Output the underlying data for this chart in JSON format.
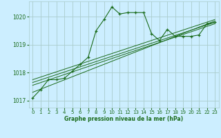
{
  "title": "Graphe pression niveau de la mer (hPa)",
  "bg_color": "#cceeff",
  "grid_color": "#aacccc",
  "line_color": "#1a6b1a",
  "text_color": "#1a6b1a",
  "ylim": [
    1016.75,
    1020.55
  ],
  "xlim": [
    -0.5,
    23.5
  ],
  "yticks": [
    1017,
    1018,
    1019,
    1020
  ],
  "xticks": [
    0,
    1,
    2,
    3,
    4,
    5,
    6,
    7,
    8,
    9,
    10,
    11,
    12,
    13,
    14,
    15,
    16,
    17,
    18,
    19,
    20,
    21,
    22,
    23
  ],
  "main_x": [
    0,
    1,
    2,
    3,
    4,
    5,
    6,
    7,
    8,
    9,
    10,
    11,
    12,
    13,
    14,
    15,
    16,
    17,
    18,
    19,
    20,
    21,
    22,
    23
  ],
  "main_y": [
    1017.1,
    1017.4,
    1017.75,
    1017.75,
    1017.8,
    1018.05,
    1018.3,
    1018.55,
    1019.5,
    1019.9,
    1020.35,
    1020.1,
    1020.15,
    1020.15,
    1020.15,
    1019.4,
    1019.15,
    1019.55,
    1019.3,
    1019.3,
    1019.3,
    1019.35,
    1019.75,
    1019.8
  ],
  "trend1_x": [
    0,
    23
  ],
  "trend1_y": [
    1017.3,
    1019.85
  ],
  "trend2_x": [
    0,
    23
  ],
  "trend2_y": [
    1017.55,
    1019.75
  ],
  "trend3_x": [
    0,
    23
  ],
  "trend3_y": [
    1017.65,
    1019.8
  ],
  "trend4_x": [
    0,
    23
  ],
  "trend4_y": [
    1017.75,
    1019.9
  ]
}
